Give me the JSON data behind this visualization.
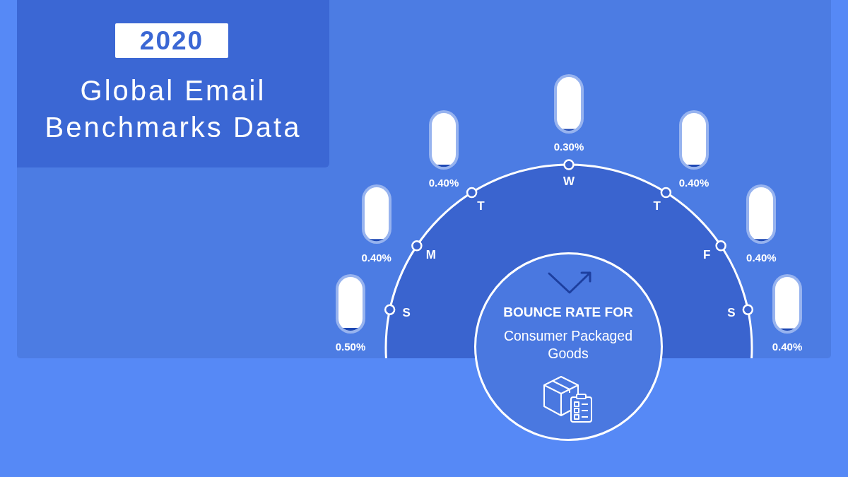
{
  "chart_data": {
    "type": "other",
    "title": "Global Email Benchmarks Data",
    "subtitle": "2020",
    "categories": [
      "S",
      "M",
      "T",
      "W",
      "T",
      "F",
      "S"
    ],
    "values": [
      0.5,
      0.4,
      0.4,
      0.3,
      0.4,
      0.4,
      0.4
    ],
    "value_labels": [
      "0.50%",
      "0.40%",
      "0.40%",
      "0.30%",
      "0.40%",
      "0.40%",
      "0.40%"
    ],
    "color": "#1e48b4",
    "annotations": [
      "BOUNCE RATE FOR",
      "Consumer Packaged Goods"
    ]
  }
}
